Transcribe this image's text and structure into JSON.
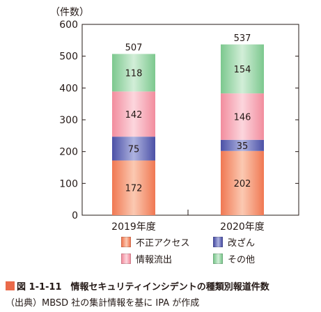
{
  "chart_data": {
    "type": "bar",
    "stacked": true,
    "ylabel": "（件数）",
    "ylim": [
      0,
      600
    ],
    "yticks": [
      0,
      100,
      200,
      300,
      400,
      500,
      600
    ],
    "categories": [
      "2019年度",
      "2020年度"
    ],
    "totals": [
      507,
      537
    ],
    "series": [
      {
        "name": "不正アクセス",
        "values": [
          172,
          202
        ],
        "color": "#f07852",
        "color_light": "#fbc9b2"
      },
      {
        "name": "改ざん",
        "values": [
          75,
          35
        ],
        "color": "#4c51a6",
        "color_light": "#aeb3e0"
      },
      {
        "name": "情報流出",
        "values": [
          142,
          146
        ],
        "color": "#f28d9e",
        "color_light": "#fcd6dd"
      },
      {
        "name": "その他",
        "values": [
          118,
          154
        ],
        "color": "#7cc88e",
        "color_light": "#d2eed8"
      }
    ],
    "legend": "bottom",
    "grid": false
  },
  "caption": {
    "figure": "図 1-1-11　情報セキュリティインシデントの種類別報道件数",
    "source": "（出典）MBSD 社の集計情報を基に IPA が作成"
  },
  "colors": {
    "accent": "#ea6a4a",
    "axis": "#231815"
  }
}
